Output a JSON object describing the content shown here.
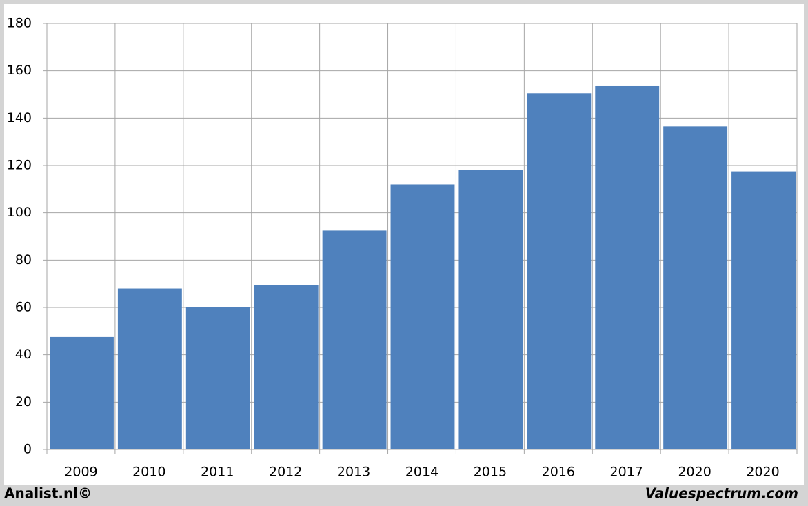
{
  "chart_data": {
    "type": "bar",
    "categories": [
      "2009",
      "2010",
      "2011",
      "2012",
      "2013",
      "2014",
      "2015",
      "2016",
      "2017",
      "2020",
      "2020"
    ],
    "values": [
      47.5,
      68,
      60,
      69.5,
      92.5,
      112,
      118,
      150.5,
      153.5,
      136.5,
      117.5
    ],
    "color": "#4f81bd",
    "ylim": [
      0,
      180
    ],
    "yticks": [
      0,
      20,
      40,
      60,
      80,
      100,
      120,
      140,
      160,
      180
    ],
    "grid": true,
    "annotations": [
      "Analist.nl©",
      "Valuespectrum.com"
    ]
  }
}
